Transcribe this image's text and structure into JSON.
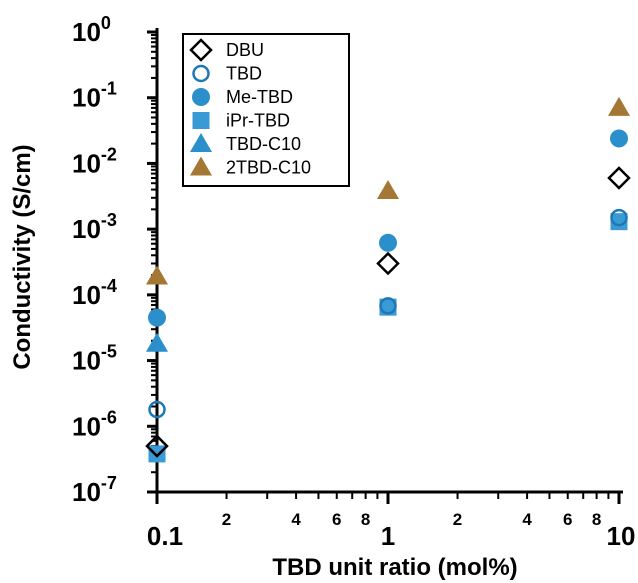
{
  "chart_data": {
    "type": "scatter",
    "xlabel": "TBD unit ratio (mol%)",
    "ylabel": "Conductivity (S/cm)",
    "x_scale": "log",
    "y_scale": "log",
    "xlim": [
      0.1,
      10
    ],
    "ylim": [
      1e-07,
      1
    ],
    "x_ticks": [
      {
        "value": 0.1,
        "label": "0.1"
      },
      {
        "value": 1,
        "label": "1"
      },
      {
        "value": 10,
        "label": "10"
      }
    ],
    "x_minor_labels": [
      {
        "value": 0.2,
        "label": "2"
      },
      {
        "value": 0.4,
        "label": "4"
      },
      {
        "value": 0.6,
        "label": "6"
      },
      {
        "value": 0.8,
        "label": "8"
      },
      {
        "value": 2,
        "label": "2"
      },
      {
        "value": 4,
        "label": "4"
      },
      {
        "value": 6,
        "label": "6"
      },
      {
        "value": 8,
        "label": "8"
      }
    ],
    "y_ticks": [
      {
        "value": 1e-07,
        "base": "10",
        "exp": "-7"
      },
      {
        "value": 1e-06,
        "base": "10",
        "exp": "-6"
      },
      {
        "value": 1e-05,
        "base": "10",
        "exp": "-5"
      },
      {
        "value": 0.0001,
        "base": "10",
        "exp": "-4"
      },
      {
        "value": 0.001,
        "base": "10",
        "exp": "-3"
      },
      {
        "value": 0.01,
        "base": "10",
        "exp": "-2"
      },
      {
        "value": 0.1,
        "base": "10",
        "exp": "-1"
      },
      {
        "value": 1,
        "base": "10",
        "exp": "0"
      }
    ],
    "legend_position": "top-left",
    "grid": false,
    "series": [
      {
        "name": "DBU",
        "marker": "diamond-open",
        "color": "#000000",
        "points": [
          {
            "x": 0.1,
            "y": 5e-07
          },
          {
            "x": 1,
            "y": 0.0003
          },
          {
            "x": 10,
            "y": 0.006
          }
        ]
      },
      {
        "name": "TBD",
        "marker": "circle-open",
        "color": "#1f77b4",
        "points": [
          {
            "x": 0.1,
            "y": 1.8e-06
          },
          {
            "x": 1,
            "y": 6.8e-05
          },
          {
            "x": 10,
            "y": 0.0015
          }
        ]
      },
      {
        "name": "Me-TBD",
        "marker": "circle",
        "color": "#2a8fcb",
        "points": [
          {
            "x": 0.1,
            "y": 4.5e-05
          },
          {
            "x": 1,
            "y": 0.00062
          },
          {
            "x": 10,
            "y": 0.024
          }
        ]
      },
      {
        "name": "iPr-TBD",
        "marker": "square",
        "color": "#3a9ad6",
        "points": [
          {
            "x": 0.1,
            "y": 3.8e-07
          },
          {
            "x": 1,
            "y": 6.5e-05
          },
          {
            "x": 10,
            "y": 0.0013
          }
        ]
      },
      {
        "name": "TBD-C10",
        "marker": "triangle",
        "color": "#2a8fcb",
        "points": [
          {
            "x": 0.1,
            "y": 1.8e-05
          }
        ]
      },
      {
        "name": "2TBD-C10",
        "marker": "triangle",
        "color": "#a47834",
        "points": [
          {
            "x": 0.1,
            "y": 0.00019
          },
          {
            "x": 1,
            "y": 0.0038
          },
          {
            "x": 10,
            "y": 0.07
          }
        ]
      }
    ]
  }
}
